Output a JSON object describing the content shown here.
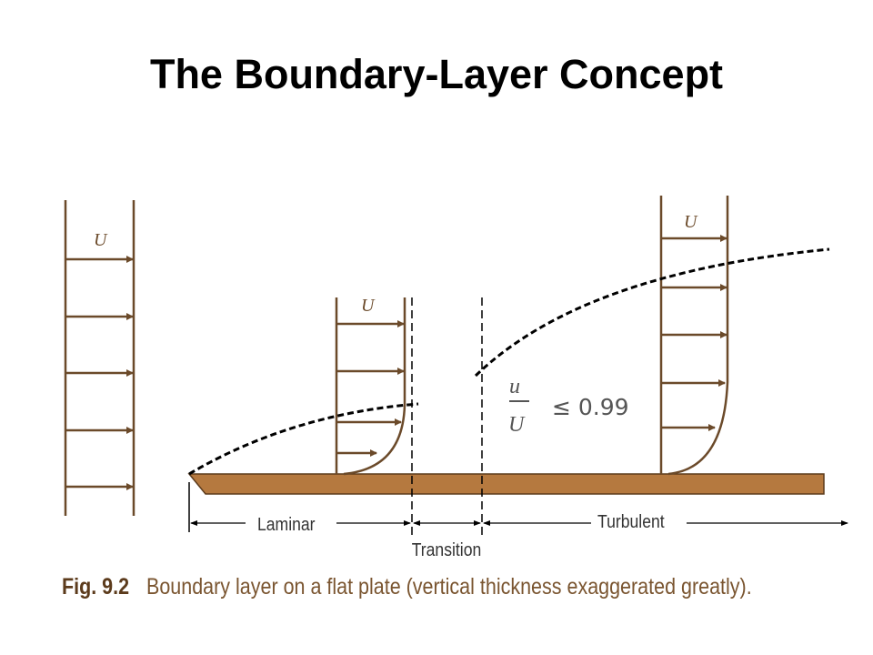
{
  "title": "The Boundary-Layer Concept",
  "diagram": {
    "velocity_label": "U",
    "ratio_numerator": "u",
    "ratio_denominator": "U",
    "ratio_condition": "≤ 0.99",
    "regions": {
      "laminar": "Laminar",
      "transition": "Transition",
      "turbulent": "Turbulent"
    },
    "colors": {
      "profile": "#6b4a2a",
      "plate": "#b5793f",
      "dashed": "#000000"
    }
  },
  "caption": {
    "figure": "Fig. 9.2",
    "text": "Boundary layer on a flat plate (vertical thickness exaggerated greatly)."
  }
}
